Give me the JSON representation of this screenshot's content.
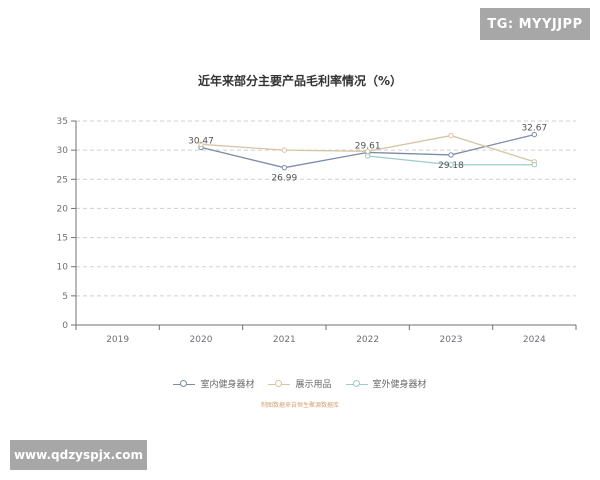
{
  "badges": {
    "top_right": "TG: MYYJJPP",
    "bottom_left": "www.qdzyspjx.com"
  },
  "source_note": "制图数据来自恒生聚源数据库",
  "colors": {
    "series_1": "#7b8ca8",
    "series_2": "#d9c4a2",
    "series_3": "#9ccbc8",
    "grid": "#cfcfcf",
    "axis": "#6e7079",
    "label": "#6e7079"
  },
  "chart_data": {
    "type": "line",
    "title": "近年来部分主要产品毛利率情况（%）",
    "categories": [
      "2019",
      "2020",
      "2021",
      "2022",
      "2023",
      "2024"
    ],
    "ylim": [
      0,
      35
    ],
    "yticks": [
      0,
      5,
      10,
      15,
      20,
      25,
      30,
      35
    ],
    "grid": true,
    "legend_position": "bottom-center",
    "series": [
      {
        "name": "室内健身器材",
        "values": [
          null,
          30.47,
          26.99,
          29.61,
          29.18,
          32.67
        ],
        "show_labels": true
      },
      {
        "name": "展示用品",
        "values": [
          null,
          31.0,
          30.0,
          29.8,
          32.5,
          28.0
        ],
        "show_labels": false
      },
      {
        "name": "室外健身器材",
        "values": [
          null,
          null,
          null,
          29.0,
          27.5,
          27.5
        ],
        "show_labels": false
      }
    ]
  }
}
